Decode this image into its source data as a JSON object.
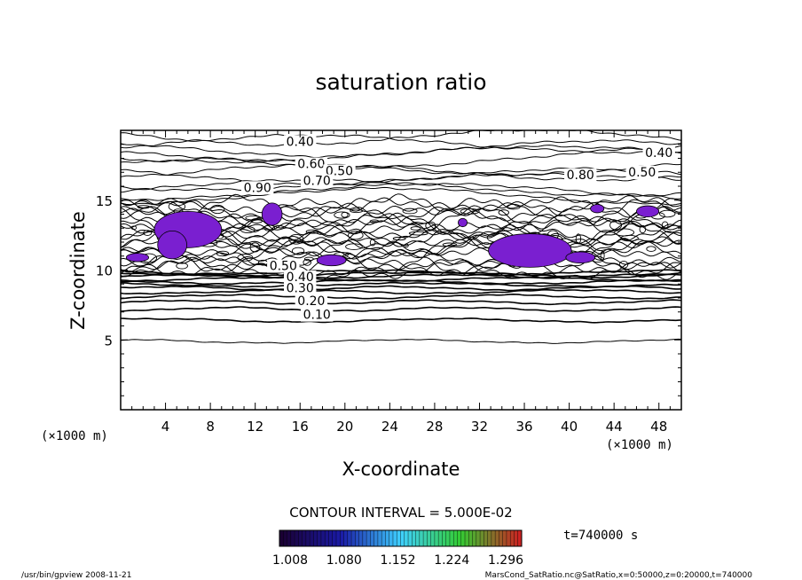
{
  "chart_data": {
    "type": "contour",
    "title": "saturation ratio",
    "xlabel": "X-coordinate",
    "ylabel": "Z-coordinate",
    "x_unit": "(×1000 m)",
    "y_unit": "(×1000 m)",
    "xlim": [
      0,
      50
    ],
    "ylim": [
      0,
      20
    ],
    "x_ticks": [
      "4",
      "8",
      "12",
      "16",
      "20",
      "24",
      "28",
      "32",
      "36",
      "40",
      "44",
      "48"
    ],
    "y_ticks": [
      "5",
      "10",
      "15"
    ],
    "grid": false,
    "contour_interval_label": "CONTOUR INTERVAL = 5.000E-02",
    "contour_labels": [
      "0.40",
      "0.40",
      "0.60",
      "0.50",
      "0.50",
      "0.70",
      "0.90",
      "0.80",
      "0.50",
      "0.40",
      "0.30",
      "0.20",
      "0.10"
    ],
    "shaded_range_min": 1.0,
    "colorbar": {
      "tick_labels": [
        "1.008",
        "1.080",
        "1.152",
        "1.224",
        "1.296"
      ],
      "colors": [
        "#1a0033",
        "#1a1aa6",
        "#3fd0ff",
        "#33cc33",
        "#cc2222"
      ]
    },
    "time_label": "t=740000 s",
    "supersaturated_fill_color": "#7a1fd0",
    "footer_left": "/usr/bin/gpview  2008-11-21",
    "footer_right": "MarsCond_SatRatio.nc@SatRatio,x=0:50000,z=0:20000,t=740000"
  }
}
